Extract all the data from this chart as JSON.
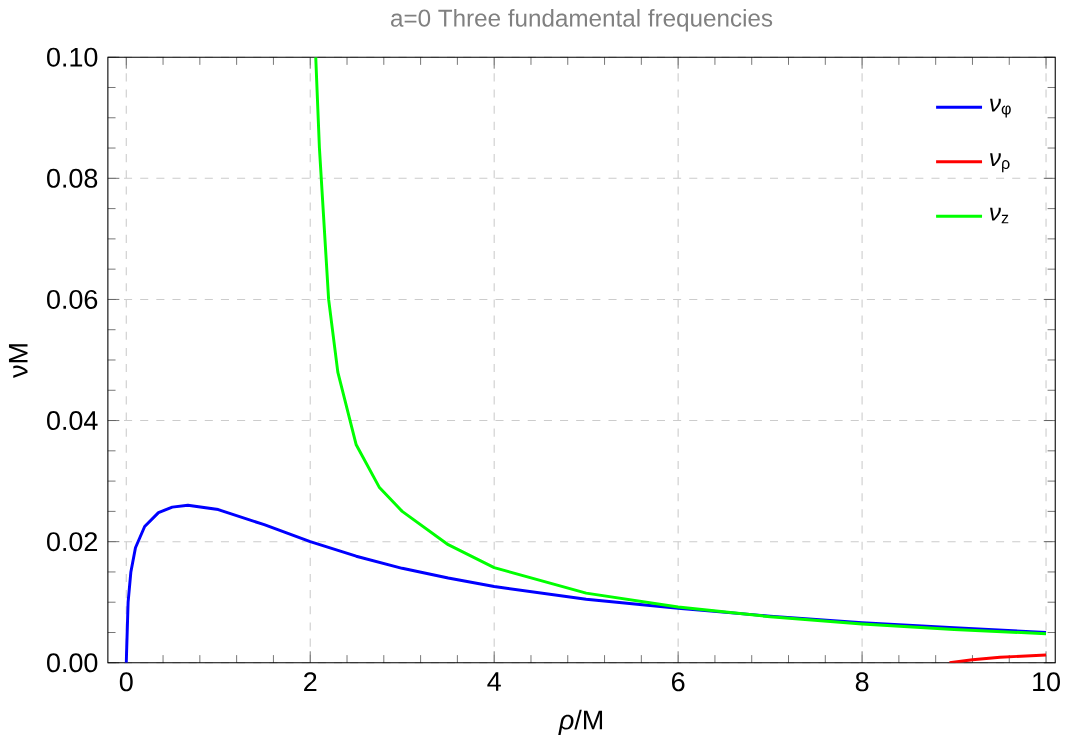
{
  "chart_data": {
    "type": "line",
    "title": "a=0  Three fundamental frequencies",
    "xlabel": "*ρ*/M",
    "ylabel": "νM",
    "xlim": [
      -0.2,
      10.1
    ],
    "ylim": [
      0,
      0.1
    ],
    "xticks": [
      0,
      2,
      4,
      6,
      8,
      10
    ],
    "yticks": [
      {
        "value": 0,
        "label": "0.00"
      },
      {
        "value": 0.02,
        "label": "0.02"
      },
      {
        "value": 0.04,
        "label": "0.04"
      },
      {
        "value": 0.06,
        "label": "0.06"
      },
      {
        "value": 0.08,
        "label": "0.08"
      },
      {
        "value": 0.1,
        "label": "0.10"
      }
    ],
    "grid": true,
    "legend": "top right",
    "line_style": "solid",
    "marker": "none",
    "series": [
      {
        "name": "*ν*$_{φ}$",
        "color": "#0000ff",
        "x": [
          0,
          0.02,
          0.05,
          0.1,
          0.2,
          0.35,
          0.5,
          0.67,
          1,
          1.5,
          2,
          2.5,
          3,
          3.5,
          4,
          5,
          6,
          7,
          8,
          9,
          10
        ],
        "values": [
          0,
          0.01,
          0.015,
          0.019,
          0.0225,
          0.0248,
          0.0257,
          0.026,
          0.0253,
          0.0228,
          0.02,
          0.0176,
          0.0156,
          0.014,
          0.0126,
          0.0105,
          0.009,
          0.0077,
          0.0066,
          0.0058,
          0.005
        ]
      },
      {
        "name": "*ν*$_{ρ}$",
        "color": "#ff0000",
        "x": [
          8.95,
          9.2,
          9.5,
          10
        ],
        "values": [
          0,
          0.0005,
          0.0009,
          0.0013
        ]
      },
      {
        "name": "*ν*$_{z}$",
        "color": "#00ff00",
        "x": [
          2.06,
          2.1,
          2.2,
          2.3,
          2.5,
          2.75,
          3,
          3.5,
          4,
          5,
          6,
          7,
          8,
          9,
          10
        ],
        "values": [
          0.1,
          0.085,
          0.06,
          0.048,
          0.036,
          0.029,
          0.025,
          0.0195,
          0.0157,
          0.0115,
          0.0092,
          0.0076,
          0.0064,
          0.0055,
          0.0048
        ]
      }
    ]
  }
}
